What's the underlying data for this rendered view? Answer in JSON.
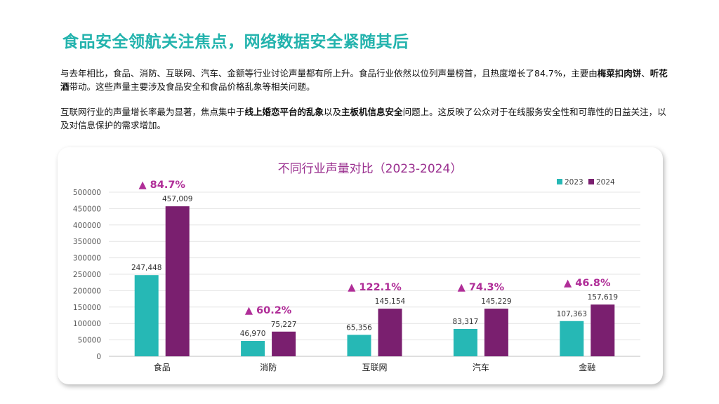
{
  "page": {
    "title": "食品安全领航关注焦点，网络数据安全紧随其后",
    "p1": {
      "t1": "与去年相比，食品、消防、互联网、汽车、金额等行业讨论声量都有所上升。食品行业依然以位列声量榜首，且热度增长了84.7%，主要由",
      "b1": "梅菜扣肉饼",
      "t2": "、",
      "b2": "听花酒",
      "t3": "带动。这些声量主要涉及食品安全和食品价格乱象等相关问题。"
    },
    "p2": {
      "t1": "互联网行业的声量增长率最为显著，焦点集中于",
      "b1": "线上婚恋平台的乱象",
      "t2": "以及",
      "b2": "主板机信息安全",
      "t3": "问题上。这反映了公众对于在线服务安全性和可靠性的日益关注，以及对信息保护的需求增加。"
    }
  },
  "colors": {
    "accent": "#23b3ad",
    "series_2023": "#26b8b5",
    "series_2024": "#7a1f6f",
    "growth": "#b02e98",
    "chart_title": "#9a2f8f"
  },
  "chart_data": {
    "type": "bar",
    "title": "不同行业声量对比（2023-2024）",
    "categories": [
      "食品",
      "消防",
      "互联网",
      "汽车",
      "金融"
    ],
    "series": [
      {
        "name": "2023",
        "values": [
          247448,
          46970,
          65356,
          83317,
          107363
        ]
      },
      {
        "name": "2024",
        "values": [
          457009,
          75227,
          145154,
          145229,
          157619
        ]
      }
    ],
    "value_labels": [
      [
        "247,448",
        "46,970",
        "65,356",
        "83,317",
        "107,363"
      ],
      [
        "457,009",
        "75,227",
        "145,154",
        "145,229",
        "157,619"
      ]
    ],
    "growth_labels": [
      "▲ 84.7%",
      "▲ 60.2%",
      "▲ 122.1%",
      "▲ 74.3%",
      "▲ 46.8%"
    ],
    "ylim": [
      0,
      500000
    ],
    "yticks": [
      "0",
      "50000",
      "100000",
      "150000",
      "200000",
      "250000",
      "300000",
      "350000",
      "400000",
      "450000",
      "500000"
    ],
    "legend": "top-right",
    "grid": true
  }
}
